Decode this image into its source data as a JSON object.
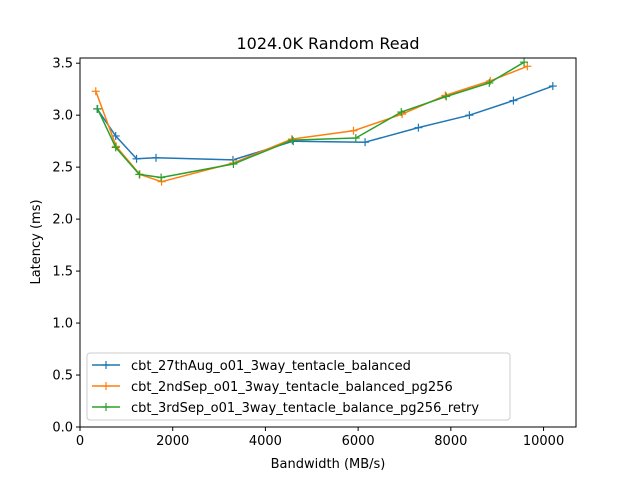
{
  "chart_data": {
    "type": "line",
    "title": "1024.0K  Random Read",
    "xlabel": "Bandwidth (MB/s)",
    "ylabel": "Latency (ms)",
    "xlim": [
      0,
      10700
    ],
    "ylim": [
      0.0,
      3.55
    ],
    "xticks": [
      0,
      2000,
      4000,
      6000,
      8000,
      10000
    ],
    "yticks": [
      0.0,
      0.5,
      1.0,
      1.5,
      2.0,
      2.5,
      3.0,
      3.5
    ],
    "ytick_labels": [
      "0.0",
      "0.5",
      "1.0",
      "1.5",
      "2.0",
      "2.5",
      "3.0",
      "3.5"
    ],
    "xtick_labels": [
      "0",
      "2000",
      "4000",
      "6000",
      "8000",
      "10000"
    ],
    "grid": false,
    "legend_position": "lower-left",
    "marker": "+",
    "series": [
      {
        "name": "cbt_27thAug_o01_3way_tentacle_balanced",
        "color": "#1f77b4",
        "x": [
          370,
          770,
          1220,
          1640,
          3300,
          4600,
          6150,
          7300,
          8400,
          9350,
          10200
        ],
        "y": [
          3.06,
          2.8,
          2.58,
          2.59,
          2.57,
          2.75,
          2.74,
          2.88,
          3.0,
          3.14,
          3.28
        ]
      },
      {
        "name": "cbt_2ndSep_o01_3way_tentacle_balanced_pg256",
        "color": "#ff7f0e",
        "x": [
          340,
          780,
          1290,
          1760,
          3310,
          4570,
          5900,
          6950,
          7880,
          8850,
          9650
        ],
        "y": [
          3.23,
          2.7,
          2.43,
          2.36,
          2.54,
          2.77,
          2.85,
          3.01,
          3.19,
          3.33,
          3.47
        ]
      },
      {
        "name": "cbt_3rdSep_o01_3way_tentacle_balance_pg256_retry",
        "color": "#2ca02c",
        "x": [
          380,
          770,
          1280,
          1750,
          3310,
          4580,
          5950,
          6930,
          7900,
          8830,
          9580
        ],
        "y": [
          3.06,
          2.69,
          2.43,
          2.4,
          2.53,
          2.76,
          2.78,
          3.03,
          3.18,
          3.31,
          3.51
        ]
      }
    ]
  }
}
